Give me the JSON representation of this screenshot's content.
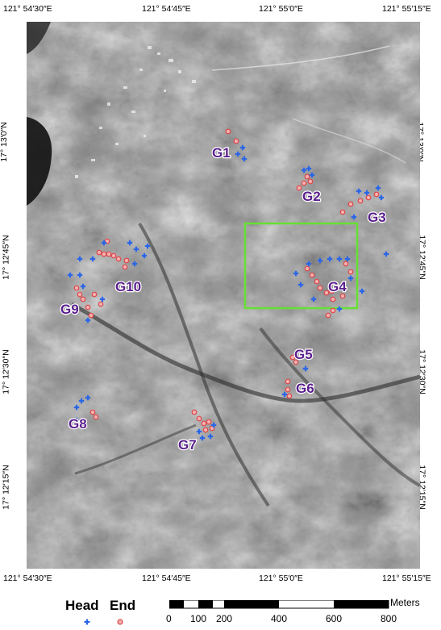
{
  "coords": {
    "top": [
      "121° 54′30″E",
      "121° 54′45″E",
      "121° 55′0″E",
      "121° 55′15″E"
    ],
    "bottom": [
      "121° 54′30″E",
      "121° 54′45″E",
      "121° 55′0″E",
      "121° 55′15″E"
    ],
    "left": [
      "17° 13′0″N",
      "17° 12′45″N",
      "17° 12′30″N",
      "17° 12′15″N"
    ],
    "right": [
      "17° 13′0″N",
      "17° 12′45″N",
      "17° 12′30″N",
      "17° 12′15″N"
    ]
  },
  "groups": [
    "G1",
    "G2",
    "G3",
    "G4",
    "G5",
    "G6",
    "G7",
    "G8",
    "G9",
    "G10"
  ],
  "legend": {
    "head": "Head",
    "end": "End"
  },
  "scale": {
    "unit": "Meters",
    "labels": [
      "0",
      "100",
      "200",
      "400",
      "600",
      "800"
    ]
  },
  "colors": {
    "head_marker": "#2a66e8",
    "end_marker": "#e0686a",
    "study_box": "#66e033",
    "group_label": "#5a1e8c"
  }
}
